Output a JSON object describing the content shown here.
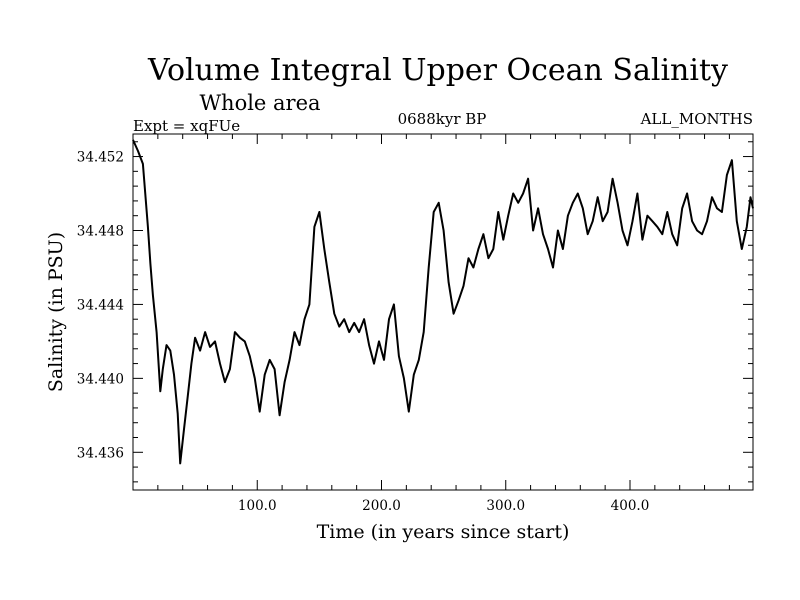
{
  "chart_data": {
    "type": "line",
    "title": "Volume Integral Upper Ocean Salinity",
    "subtitle": "Whole area",
    "left_label": "Expt = xqFUe",
    "center_label": "0688kyr BP",
    "right_label": "ALL_MONTHS",
    "xlabel": "Time (in years since start)",
    "ylabel": "Salinity (in PSU)",
    "xlim": [
      0,
      499
    ],
    "ylim": [
      34.43396,
      34.45322
    ],
    "xticks": [
      100,
      200,
      300,
      400
    ],
    "xtick_labels": [
      "100.0",
      "200.0",
      "300.0",
      "400.0"
    ],
    "yticks": [
      34.436,
      34.44,
      34.444,
      34.448,
      34.452
    ],
    "ytick_labels": [
      "34.436",
      "34.440",
      "34.444",
      "34.448",
      "34.452"
    ],
    "grid": false,
    "series": [
      {
        "name": "Salinity",
        "x": [
          0,
          4,
          8,
          12,
          14,
          16,
          19,
          22,
          24,
          27,
          30,
          33,
          36,
          38,
          41,
          44,
          47,
          50,
          54,
          58,
          62,
          66,
          70,
          74,
          78,
          82,
          86,
          90,
          94,
          98,
          102,
          106,
          110,
          114,
          118,
          122,
          126,
          130,
          134,
          138,
          142,
          146,
          150,
          154,
          158,
          162,
          166,
          170,
          174,
          178,
          182,
          186,
          190,
          194,
          198,
          202,
          206,
          210,
          214,
          218,
          222,
          226,
          230,
          234,
          238,
          242,
          246,
          250,
          254,
          258,
          262,
          266,
          270,
          274,
          278,
          282,
          286,
          290,
          294,
          298,
          302,
          306,
          310,
          314,
          318,
          322,
          326,
          330,
          334,
          338,
          342,
          346,
          350,
          354,
          358,
          362,
          366,
          370,
          374,
          378,
          382,
          386,
          390,
          394,
          398,
          402,
          406,
          410,
          414,
          418,
          422,
          426,
          430,
          434,
          438,
          442,
          446,
          450,
          454,
          458,
          462,
          466,
          470,
          474,
          478,
          482,
          486,
          490,
          494,
          497,
          499
        ],
        "values": [
          34.4529,
          34.4523,
          34.4516,
          34.4482,
          34.4462,
          34.4445,
          34.4425,
          34.4393,
          34.4405,
          34.4418,
          34.4415,
          34.4402,
          34.4381,
          34.4354,
          34.4372,
          34.439,
          34.4408,
          34.4422,
          34.4415,
          34.4425,
          34.4417,
          34.442,
          34.4408,
          34.4398,
          34.4405,
          34.4425,
          34.4422,
          34.442,
          34.4412,
          34.44,
          34.4382,
          34.4402,
          34.441,
          34.4405,
          34.438,
          34.4398,
          34.441,
          34.4425,
          34.4418,
          34.4432,
          34.444,
          34.4482,
          34.449,
          34.447,
          34.4452,
          34.4435,
          34.4428,
          34.4432,
          34.4425,
          34.443,
          34.4425,
          34.4432,
          34.4418,
          34.4408,
          34.442,
          34.441,
          34.4432,
          34.444,
          34.4412,
          34.44,
          34.4382,
          34.4402,
          34.441,
          34.4425,
          34.446,
          34.449,
          34.4495,
          34.448,
          34.4452,
          34.4435,
          34.4442,
          34.445,
          34.4465,
          34.446,
          34.447,
          34.4478,
          34.4465,
          34.447,
          34.449,
          34.4475,
          34.4488,
          34.45,
          34.4495,
          34.45,
          34.4508,
          34.448,
          34.4492,
          34.4478,
          34.447,
          34.446,
          34.448,
          34.447,
          34.4488,
          34.4495,
          34.45,
          34.4492,
          34.4478,
          34.4485,
          34.4498,
          34.4485,
          34.449,
          34.4508,
          34.4495,
          34.448,
          34.4472,
          34.4485,
          34.45,
          34.4475,
          34.4488,
          34.4485,
          34.4482,
          34.4478,
          34.449,
          34.4478,
          34.4472,
          34.4492,
          34.45,
          34.4485,
          34.448,
          34.4478,
          34.4485,
          34.4498,
          34.4492,
          34.449,
          34.451,
          34.4518,
          34.4485,
          34.447,
          34.4482,
          34.4498,
          34.4492
        ]
      }
    ]
  }
}
